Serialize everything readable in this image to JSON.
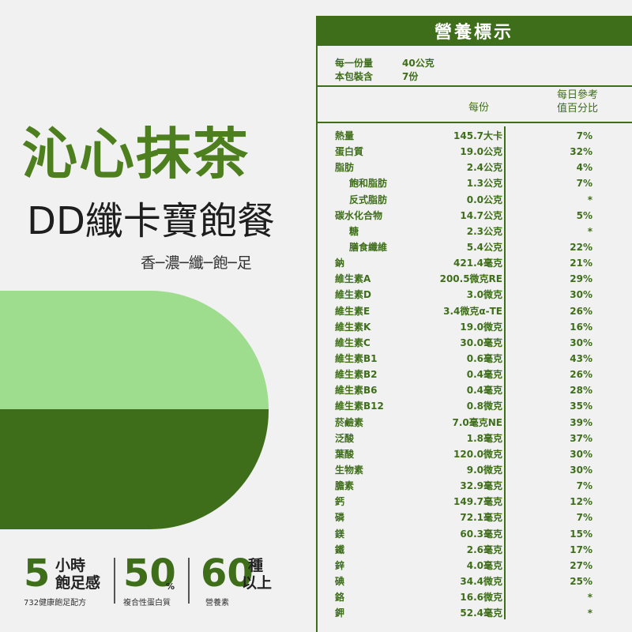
{
  "brand": {
    "title": "沁心抹茶",
    "subtitle": "DD纖卡寶飽餐",
    "tagline": "香─濃─纖─飽─足"
  },
  "stats": [
    {
      "number": "5",
      "label_line1": "小時",
      "label_line2": "飽足感",
      "caption": "732健康飽足配方"
    },
    {
      "number": "50",
      "unit": "%",
      "caption": "複合性蛋白質"
    },
    {
      "number": "60",
      "label_line1": "種",
      "label_line2": "以上",
      "caption": "營養素"
    }
  ],
  "nutrition": {
    "heading": "營養標示",
    "serving_label": "每一份量",
    "serving_value": "40公克",
    "package_label": "本包裝含",
    "package_value": "7份",
    "col_per_serving": "每份",
    "col_daily_line1": "每日參考",
    "col_daily_line2": "值百分比",
    "rows": [
      {
        "name": "熱量",
        "value": "145.7大卡",
        "pct": "7%",
        "indent": false
      },
      {
        "name": "蛋白質",
        "value": "19.0公克",
        "pct": "32%",
        "indent": false
      },
      {
        "name": "脂肪",
        "value": "2.4公克",
        "pct": "4%",
        "indent": false
      },
      {
        "name": "飽和脂肪",
        "value": "1.3公克",
        "pct": "7%",
        "indent": true
      },
      {
        "name": "反式脂肪",
        "value": "0.0公克",
        "pct": "*",
        "indent": true
      },
      {
        "name": "碳水化合物",
        "value": "14.7公克",
        "pct": "5%",
        "indent": false
      },
      {
        "name": "糖",
        "value": "2.3公克",
        "pct": "*",
        "indent": true
      },
      {
        "name": "膳食纖維",
        "value": "5.4公克",
        "pct": "22%",
        "indent": true
      },
      {
        "name": "鈉",
        "value": "421.4毫克",
        "pct": "21%",
        "indent": false
      },
      {
        "name": "維生素A",
        "value": "200.5微克RE",
        "pct": "29%",
        "indent": false
      },
      {
        "name": "維生素D",
        "value": "3.0微克",
        "pct": "30%",
        "indent": false
      },
      {
        "name": "維生素E",
        "value": "3.4微克α-TE",
        "pct": "26%",
        "indent": false
      },
      {
        "name": "維生素K",
        "value": "19.0微克",
        "pct": "16%",
        "indent": false
      },
      {
        "name": "維生素C",
        "value": "30.0毫克",
        "pct": "30%",
        "indent": false
      },
      {
        "name": "維生素B1",
        "value": "0.6毫克",
        "pct": "43%",
        "indent": false
      },
      {
        "name": "維生素B2",
        "value": "0.4毫克",
        "pct": "26%",
        "indent": false
      },
      {
        "name": "維生素B6",
        "value": "0.4毫克",
        "pct": "28%",
        "indent": false
      },
      {
        "name": "維生素B12",
        "value": "0.8微克",
        "pct": "35%",
        "indent": false
      },
      {
        "name": "菸鹼素",
        "value": "7.0毫克NE",
        "pct": "39%",
        "indent": false
      },
      {
        "name": "泛酸",
        "value": "1.8毫克",
        "pct": "37%",
        "indent": false
      },
      {
        "name": "葉酸",
        "value": "120.0微克",
        "pct": "30%",
        "indent": false
      },
      {
        "name": "生物素",
        "value": "9.0微克",
        "pct": "30%",
        "indent": false
      },
      {
        "name": "膽素",
        "value": "32.9毫克",
        "pct": "7%",
        "indent": false
      },
      {
        "name": "鈣",
        "value": "149.7毫克",
        "pct": "12%",
        "indent": false
      },
      {
        "name": "磷",
        "value": "72.1毫克",
        "pct": "7%",
        "indent": false
      },
      {
        "name": "鎂",
        "value": "60.3毫克",
        "pct": "15%",
        "indent": false
      },
      {
        "name": "鐵",
        "value": "2.6毫克",
        "pct": "17%",
        "indent": false
      },
      {
        "name": "鋅",
        "value": "4.0毫克",
        "pct": "27%",
        "indent": false
      },
      {
        "name": "碘",
        "value": "34.4微克",
        "pct": "25%",
        "indent": false
      },
      {
        "name": "鉻",
        "value": "16.6微克",
        "pct": "*",
        "indent": false
      },
      {
        "name": "鉀",
        "value": "52.4毫克",
        "pct": "*",
        "indent": false
      }
    ]
  },
  "colors": {
    "brand_green": "#4d7f1f",
    "dark_green": "#3f6e1b",
    "light_green": "#9fdd8e",
    "background": "#f1f1f1"
  }
}
